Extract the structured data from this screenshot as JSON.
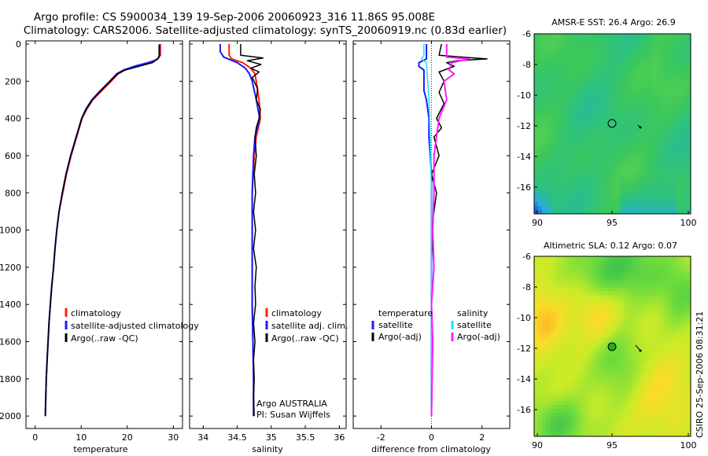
{
  "header": {
    "line1": "Argo profile: CS 5900034_139 19-Sep-2006 20060923_316 11.86S 95.008E",
    "line2": "Climatology: CARS2006. Satellite-adjusted climatology: synTS_20060919.nc (0.83d earlier)"
  },
  "credit": "CSIRO 25-Sep-2006 08:31:21",
  "depth_axis": {
    "ylim": [
      0,
      2050
    ],
    "ticks": [
      0,
      200,
      400,
      600,
      800,
      1000,
      1200,
      1400,
      1600,
      1800,
      2000
    ],
    "tick_labels": [
      "0",
      "200",
      "400",
      "600",
      "800",
      "1000",
      "1200",
      "1400",
      "1600",
      "1800",
      "2000"
    ]
  },
  "colors": {
    "climatology": "#ff2200",
    "satellite": "#1a1aff",
    "argo": "#000000",
    "salinity_satellite": "#22e0f0",
    "salinity_argo": "#ff1aff"
  },
  "chart_data": [
    {
      "id": "temperature",
      "type": "line",
      "xlabel": "temperature",
      "xlim": [
        -2,
        32
      ],
      "xticks": [
        0,
        10,
        20,
        30
      ],
      "xtick_labels": [
        "0",
        "10",
        "20",
        "30"
      ],
      "series": [
        {
          "name": "climatology",
          "color": "#ff2200",
          "width": 2,
          "points": [
            [
              27.2,
              0
            ],
            [
              27.2,
              60
            ],
            [
              26.6,
              80
            ],
            [
              25.0,
              100
            ],
            [
              22.0,
              120
            ],
            [
              19.5,
              140
            ],
            [
              18.0,
              160
            ],
            [
              16.5,
              200
            ],
            [
              14.5,
              250
            ],
            [
              12.5,
              300
            ],
            [
              11.2,
              350
            ],
            [
              10.2,
              400
            ],
            [
              9.0,
              500
            ],
            [
              7.8,
              600
            ],
            [
              6.8,
              700
            ],
            [
              6.0,
              800
            ],
            [
              5.2,
              900
            ],
            [
              4.7,
              1000
            ],
            [
              4.3,
              1100
            ],
            [
              4.0,
              1200
            ],
            [
              3.6,
              1300
            ],
            [
              3.3,
              1400
            ],
            [
              3.0,
              1500
            ],
            [
              2.8,
              1600
            ],
            [
              2.6,
              1700
            ],
            [
              2.4,
              1800
            ],
            [
              2.3,
              1900
            ],
            [
              2.2,
              2000
            ]
          ]
        },
        {
          "name": "satellite-adjusted climatology",
          "color": "#1a1aff",
          "width": 2,
          "points": [
            [
              27.0,
              0
            ],
            [
              27.0,
              65
            ],
            [
              26.4,
              85
            ],
            [
              24.5,
              100
            ],
            [
              21.5,
              120
            ],
            [
              19.2,
              140
            ],
            [
              17.7,
              160
            ],
            [
              16.2,
              200
            ],
            [
              14.2,
              250
            ],
            [
              12.3,
              300
            ],
            [
              11.0,
              350
            ],
            [
              10.1,
              400
            ],
            [
              8.9,
              500
            ],
            [
              7.7,
              600
            ],
            [
              6.7,
              700
            ],
            [
              5.9,
              800
            ],
            [
              5.2,
              900
            ],
            [
              4.7,
              1000
            ],
            [
              4.3,
              1100
            ],
            [
              4.0,
              1200
            ],
            [
              3.6,
              1300
            ],
            [
              3.3,
              1400
            ],
            [
              3.0,
              1500
            ],
            [
              2.8,
              1600
            ],
            [
              2.6,
              1700
            ],
            [
              2.4,
              1800
            ],
            [
              2.3,
              1900
            ],
            [
              2.2,
              2000
            ]
          ]
        },
        {
          "name": "Argo(..raw -QC)",
          "color": "#000000",
          "width": 1.5,
          "points": [
            [
              26.9,
              5
            ],
            [
              26.9,
              60
            ],
            [
              26.8,
              75
            ],
            [
              25.5,
              100
            ],
            [
              22.5,
              120
            ],
            [
              19.5,
              140
            ],
            [
              17.9,
              160
            ],
            [
              16.3,
              200
            ],
            [
              14.3,
              250
            ],
            [
              12.4,
              300
            ],
            [
              11.1,
              350
            ],
            [
              10.1,
              400
            ],
            [
              8.9,
              500
            ],
            [
              7.7,
              600
            ],
            [
              6.7,
              700
            ],
            [
              5.9,
              800
            ],
            [
              5.2,
              900
            ],
            [
              4.7,
              1000
            ],
            [
              4.3,
              1100
            ],
            [
              4.0,
              1200
            ],
            [
              3.6,
              1300
            ],
            [
              3.3,
              1400
            ],
            [
              3.0,
              1500
            ],
            [
              2.8,
              1600
            ],
            [
              2.6,
              1700
            ],
            [
              2.4,
              1800
            ],
            [
              2.3,
              1900
            ],
            [
              2.2,
              2000
            ]
          ]
        }
      ],
      "legend": [
        "climatology",
        "satellite-adjusted climatology",
        "Argo(..raw -QC)"
      ]
    },
    {
      "id": "salinity",
      "type": "line",
      "xlabel": "salinity",
      "xlim": [
        33.8,
        36.1
      ],
      "xticks": [
        34,
        34.5,
        35,
        35.5,
        36
      ],
      "xtick_labels": [
        "34",
        "34.5",
        "35",
        "35.5",
        "36"
      ],
      "series": [
        {
          "name": "climatology",
          "color": "#ff2200",
          "width": 2,
          "points": [
            [
              34.38,
              0
            ],
            [
              34.38,
              60
            ],
            [
              34.42,
              80
            ],
            [
              34.58,
              100
            ],
            [
              34.7,
              130
            ],
            [
              34.76,
              160
            ],
            [
              34.78,
              200
            ],
            [
              34.82,
              300
            ],
            [
              34.84,
              400
            ],
            [
              34.78,
              500
            ],
            [
              34.75,
              600
            ],
            [
              34.72,
              800
            ],
            [
              34.72,
              1000
            ],
            [
              34.72,
              1200
            ],
            [
              34.72,
              1400
            ],
            [
              34.73,
              1600
            ],
            [
              34.74,
              1800
            ],
            [
              34.74,
              2000
            ]
          ]
        },
        {
          "name": "satellite adj. clim.",
          "color": "#1a1aff",
          "width": 2,
          "points": [
            [
              34.25,
              0
            ],
            [
              34.25,
              40
            ],
            [
              34.3,
              70
            ],
            [
              34.5,
              100
            ],
            [
              34.62,
              130
            ],
            [
              34.68,
              160
            ],
            [
              34.72,
              200
            ],
            [
              34.78,
              300
            ],
            [
              34.83,
              400
            ],
            [
              34.76,
              500
            ],
            [
              34.74,
              600
            ],
            [
              34.72,
              800
            ],
            [
              34.72,
              1000
            ],
            [
              34.72,
              1200
            ],
            [
              34.72,
              1400
            ],
            [
              34.73,
              1600
            ],
            [
              34.74,
              1800
            ],
            [
              34.74,
              2000
            ]
          ]
        },
        {
          "name": "Argo(..raw -QC)",
          "color": "#000000",
          "width": 1.5,
          "points": [
            [
              34.55,
              0
            ],
            [
              34.55,
              60
            ],
            [
              34.88,
              75
            ],
            [
              34.65,
              90
            ],
            [
              34.85,
              110
            ],
            [
              34.7,
              130
            ],
            [
              34.82,
              150
            ],
            [
              34.72,
              180
            ],
            [
              34.8,
              240
            ],
            [
              34.78,
              300
            ],
            [
              34.84,
              350
            ],
            [
              34.82,
              400
            ],
            [
              34.78,
              450
            ],
            [
              34.76,
              500
            ],
            [
              34.78,
              600
            ],
            [
              34.75,
              700
            ],
            [
              34.77,
              800
            ],
            [
              34.74,
              900
            ],
            [
              34.77,
              1000
            ],
            [
              34.74,
              1100
            ],
            [
              34.78,
              1200
            ],
            [
              34.76,
              1300
            ],
            [
              34.77,
              1400
            ],
            [
              34.74,
              1500
            ],
            [
              34.76,
              1600
            ],
            [
              34.74,
              1700
            ],
            [
              34.75,
              1800
            ],
            [
              34.74,
              1900
            ],
            [
              34.75,
              2000
            ]
          ]
        }
      ],
      "legend": [
        "climatology",
        "satellite adj. clim.",
        "Argo(..raw -QC)"
      ],
      "annotation": [
        "Argo AUSTRALIA",
        "PI: Susan Wijffels"
      ]
    },
    {
      "id": "difference",
      "type": "line",
      "xlabel": "difference from climatology",
      "xlim": [
        -3.1,
        3.1
      ],
      "xticks": [
        -2,
        0,
        2
      ],
      "xtick_labels": [
        "-2",
        "0",
        "2"
      ],
      "series": [
        {
          "name": "temperature satellite",
          "color": "#1a1aff",
          "width": 2,
          "points": [
            [
              -0.2,
              0
            ],
            [
              -0.2,
              60
            ],
            [
              -0.2,
              80
            ],
            [
              -0.5,
              100
            ],
            [
              -0.5,
              120
            ],
            [
              -0.3,
              140
            ],
            [
              -0.3,
              160
            ],
            [
              -0.3,
              200
            ],
            [
              -0.3,
              250
            ],
            [
              -0.2,
              300
            ],
            [
              -0.1,
              400
            ],
            [
              -0.1,
              500
            ],
            [
              0,
              700
            ],
            [
              0,
              2000
            ]
          ]
        },
        {
          "name": "temperature Argo(-adj)",
          "color": "#000000",
          "width": 1.5,
          "points": [
            [
              0.4,
              0
            ],
            [
              0.3,
              60
            ],
            [
              1.2,
              70
            ],
            [
              2.2,
              80
            ],
            [
              1.0,
              90
            ],
            [
              0.6,
              100
            ],
            [
              0.9,
              120
            ],
            [
              0.3,
              150
            ],
            [
              0.5,
              200
            ],
            [
              0.3,
              260
            ],
            [
              0.5,
              320
            ],
            [
              0.2,
              400
            ],
            [
              0.4,
              450
            ],
            [
              0.1,
              500
            ],
            [
              0.3,
              600
            ],
            [
              0.0,
              700
            ],
            [
              0.2,
              800
            ],
            [
              0.0,
              1000
            ],
            [
              0.1,
              1200
            ],
            [
              0.0,
              1400
            ],
            [
              0.05,
              1600
            ],
            [
              0.0,
              2000
            ]
          ]
        },
        {
          "name": "salinity satellite",
          "color": "#22e0f0",
          "width": 1.5,
          "points": [
            [
              -0.3,
              0
            ],
            [
              -0.3,
              60
            ],
            [
              -0.4,
              80
            ],
            [
              -0.2,
              100
            ],
            [
              -0.15,
              200
            ],
            [
              -0.1,
              300
            ],
            [
              -0.05,
              500
            ],
            [
              0,
              800
            ],
            [
              0,
              2000
            ]
          ]
        },
        {
          "name": "salinity Argo(-adj)",
          "color": "#ff1aff",
          "width": 2,
          "points": [
            [
              0.6,
              0
            ],
            [
              0.6,
              70
            ],
            [
              1.5,
              80
            ],
            [
              0.8,
              100
            ],
            [
              0.7,
              140
            ],
            [
              0.9,
              160
            ],
            [
              0.5,
              200
            ],
            [
              0.6,
              300
            ],
            [
              0.3,
              400
            ],
            [
              0.2,
              500
            ],
            [
              0.1,
              600
            ],
            [
              0.1,
              800
            ],
            [
              0.05,
              1000
            ],
            [
              0.1,
              1200
            ],
            [
              0.0,
              1400
            ],
            [
              0.05,
              1600
            ],
            [
              0.0,
              2000
            ]
          ]
        }
      ],
      "legend_headers": [
        "temperature",
        "salinity"
      ],
      "legend": [
        "satellite",
        "Argo(-adj)",
        "satellite",
        "Argo(-adj)"
      ]
    }
  ],
  "maps": [
    {
      "title": "AMSR-E SST: 26.4 Argo: 26.9",
      "xticks": [
        "90",
        "95",
        "100"
      ],
      "yticks": [
        "-6",
        "-8",
        "-10",
        "-12",
        "-14",
        "-16"
      ],
      "marker": {
        "lon": 95.0,
        "lat": -11.86
      },
      "colormap": "sst"
    },
    {
      "title": "Altimetric SLA: 0.12 Argo: 0.07",
      "xticks": [
        "90",
        "95",
        "100"
      ],
      "yticks": [
        "-6",
        "-8",
        "-10",
        "-12",
        "-14",
        "-16"
      ],
      "marker": {
        "lon": 95.0,
        "lat": -11.86
      },
      "colormap": "sla"
    }
  ]
}
